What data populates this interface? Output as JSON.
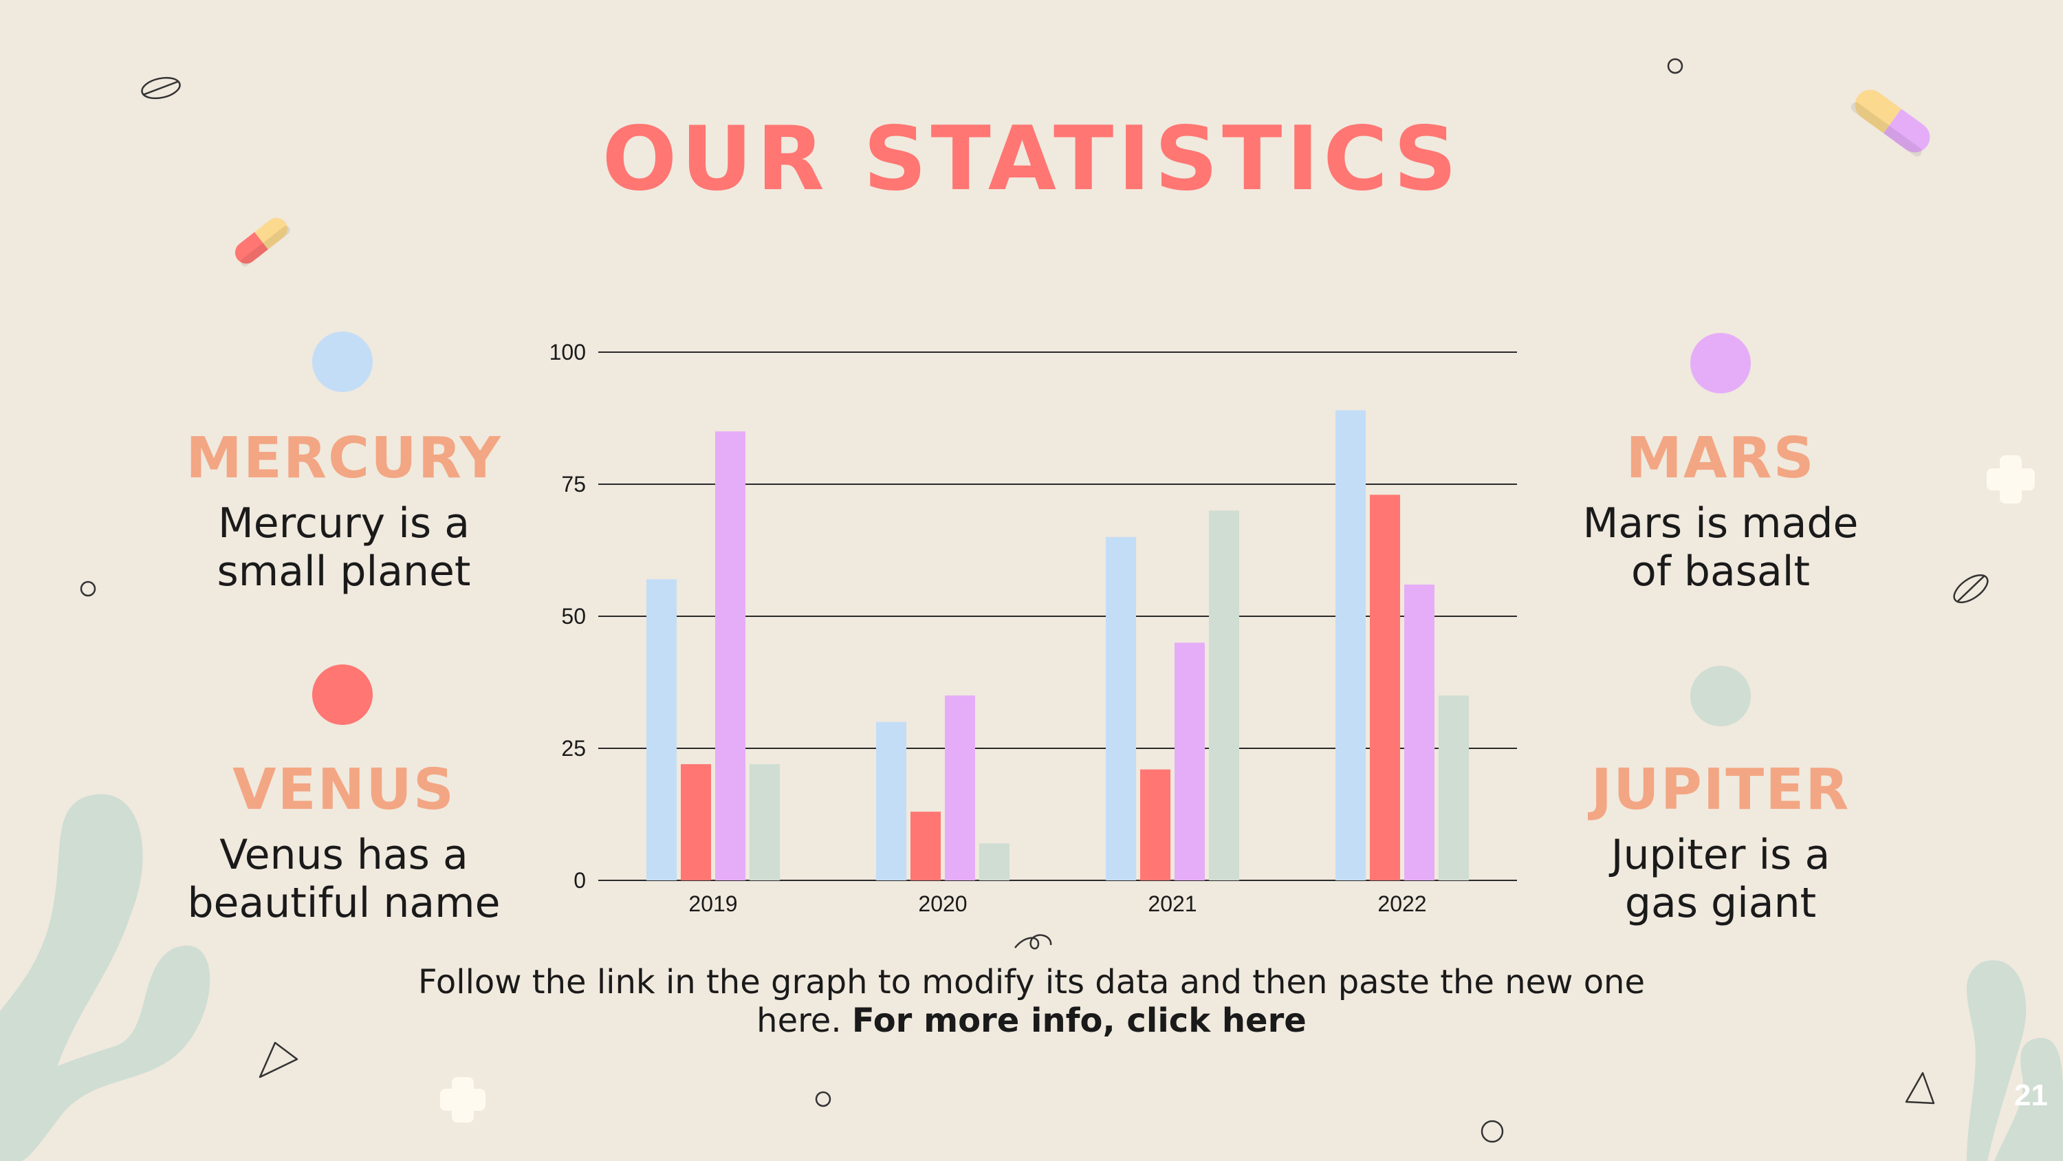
{
  "title": "OUR STATISTICS",
  "legend": [
    {
      "name": "MERCURY",
      "desc_line1": "Mercury is a",
      "desc_line2": "small planet",
      "color": "#c3ddf6"
    },
    {
      "name": "VENUS",
      "desc_line1": "Venus has a",
      "desc_line2": "beautiful name",
      "color": "#ff7672"
    },
    {
      "name": "MARS",
      "desc_line1": "Mars is made",
      "desc_line2": "of basalt",
      "color": "#e5adf8"
    },
    {
      "name": "JUPITER",
      "desc_line1": "Jupiter is a",
      "desc_line2": "gas giant",
      "color": "#cfddd3"
    }
  ],
  "footer": {
    "line1": "Follow the link in the graph to modify its data and then paste the new one",
    "line2_prefix": "here. ",
    "line2_link": "For more info, click here"
  },
  "page_number": "21",
  "chart_data": {
    "type": "bar",
    "categories": [
      "2019",
      "2020",
      "2021",
      "2022"
    ],
    "series": [
      {
        "color": "#c3ddf6",
        "values": [
          57,
          30,
          65,
          89
        ]
      },
      {
        "color": "#ff7672",
        "values": [
          22,
          13,
          21,
          73
        ]
      },
      {
        "color": "#e5adf8",
        "values": [
          85,
          35,
          45,
          56
        ]
      },
      {
        "color": "#cfddd3",
        "values": [
          22,
          7,
          70,
          35
        ]
      }
    ],
    "yticks": [
      "0",
      "25",
      "50",
      "75",
      "100"
    ],
    "ylim": [
      0,
      100
    ],
    "grid": true
  }
}
